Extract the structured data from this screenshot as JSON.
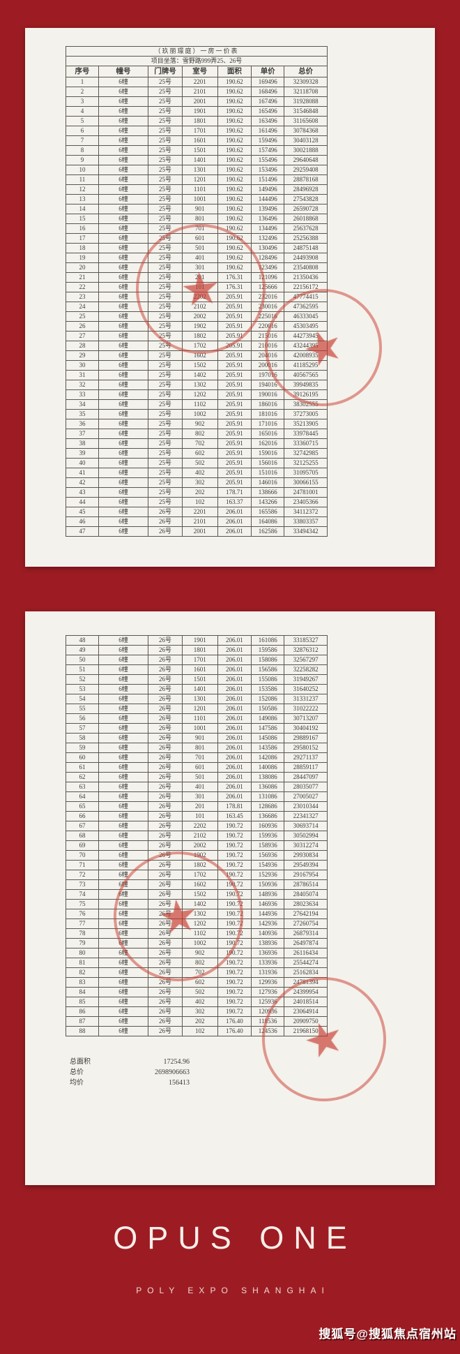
{
  "document": {
    "title": "（玖丽璟庭）一房一价表",
    "location_label": "项目坐落：",
    "location_value": "雪野路999弄25、26号",
    "headers": [
      "序号",
      "幢号",
      "门牌号",
      "室号",
      "面积",
      "单价",
      "总价"
    ],
    "page1_rows": [
      [
        "1",
        "6幢",
        "25号",
        "2201",
        "190.62",
        "169496",
        "32309328"
      ],
      [
        "2",
        "6幢",
        "25号",
        "2101",
        "190.62",
        "168496",
        "32118708"
      ],
      [
        "3",
        "6幢",
        "25号",
        "2001",
        "190.62",
        "167496",
        "31928088"
      ],
      [
        "4",
        "6幢",
        "25号",
        "1901",
        "190.62",
        "165496",
        "31546848"
      ],
      [
        "5",
        "6幢",
        "25号",
        "1801",
        "190.62",
        "163496",
        "31165608"
      ],
      [
        "6",
        "6幢",
        "25号",
        "1701",
        "190.62",
        "161496",
        "30784368"
      ],
      [
        "7",
        "6幢",
        "25号",
        "1601",
        "190.62",
        "159496",
        "30403128"
      ],
      [
        "8",
        "6幢",
        "25号",
        "1501",
        "190.62",
        "157496",
        "30021888"
      ],
      [
        "9",
        "6幢",
        "25号",
        "1401",
        "190.62",
        "155496",
        "29640648"
      ],
      [
        "10",
        "6幢",
        "25号",
        "1301",
        "190.62",
        "153496",
        "29259408"
      ],
      [
        "11",
        "6幢",
        "25号",
        "1201",
        "190.62",
        "151496",
        "28878168"
      ],
      [
        "12",
        "6幢",
        "25号",
        "1101",
        "190.62",
        "149496",
        "28496928"
      ],
      [
        "13",
        "6幢",
        "25号",
        "1001",
        "190.62",
        "144496",
        "27543828"
      ],
      [
        "14",
        "6幢",
        "25号",
        "901",
        "190.62",
        "139496",
        "26590728"
      ],
      [
        "15",
        "6幢",
        "25号",
        "801",
        "190.62",
        "136496",
        "26018868"
      ],
      [
        "16",
        "6幢",
        "25号",
        "701",
        "190.62",
        "134496",
        "25637628"
      ],
      [
        "17",
        "6幢",
        "25号",
        "601",
        "190.62",
        "132496",
        "25256388"
      ],
      [
        "18",
        "6幢",
        "25号",
        "501",
        "190.62",
        "130496",
        "24875148"
      ],
      [
        "19",
        "6幢",
        "25号",
        "401",
        "190.62",
        "128496",
        "24493908"
      ],
      [
        "20",
        "6幢",
        "25号",
        "301",
        "190.62",
        "123496",
        "23540808"
      ],
      [
        "21",
        "6幢",
        "25号",
        "201",
        "176.31",
        "121096",
        "21350436"
      ],
      [
        "22",
        "6幢",
        "25号",
        "101",
        "176.31",
        "125666",
        "22156172"
      ],
      [
        "23",
        "6幢",
        "25号",
        "2202",
        "205.91",
        "232016",
        "47774415"
      ],
      [
        "24",
        "6幢",
        "25号",
        "2102",
        "205.91",
        "230016",
        "47362595"
      ],
      [
        "25",
        "6幢",
        "25号",
        "2002",
        "205.91",
        "225016",
        "46333045"
      ],
      [
        "26",
        "6幢",
        "25号",
        "1902",
        "205.91",
        "220016",
        "45303495"
      ],
      [
        "27",
        "6幢",
        "25号",
        "1802",
        "205.91",
        "215016",
        "44273945"
      ],
      [
        "28",
        "6幢",
        "25号",
        "1702",
        "205.91",
        "210016",
        "43244395"
      ],
      [
        "29",
        "6幢",
        "25号",
        "1602",
        "205.91",
        "204016",
        "42008935"
      ],
      [
        "30",
        "6幢",
        "25号",
        "1502",
        "205.91",
        "200016",
        "41185295"
      ],
      [
        "31",
        "6幢",
        "25号",
        "1402",
        "205.91",
        "197016",
        "40567565"
      ],
      [
        "32",
        "6幢",
        "25号",
        "1302",
        "205.91",
        "194016",
        "39949835"
      ],
      [
        "33",
        "6幢",
        "25号",
        "1202",
        "205.91",
        "190016",
        "39126195"
      ],
      [
        "34",
        "6幢",
        "25号",
        "1102",
        "205.91",
        "186016",
        "38302555"
      ],
      [
        "35",
        "6幢",
        "25号",
        "1002",
        "205.91",
        "181016",
        "37273005"
      ],
      [
        "36",
        "6幢",
        "25号",
        "902",
        "205.91",
        "171016",
        "35213905"
      ],
      [
        "37",
        "6幢",
        "25号",
        "802",
        "205.91",
        "165016",
        "33978445"
      ],
      [
        "38",
        "6幢",
        "25号",
        "702",
        "205.91",
        "162016",
        "33360715"
      ],
      [
        "39",
        "6幢",
        "25号",
        "602",
        "205.91",
        "159016",
        "32742985"
      ],
      [
        "40",
        "6幢",
        "25号",
        "502",
        "205.91",
        "156016",
        "32125255"
      ],
      [
        "41",
        "6幢",
        "25号",
        "402",
        "205.91",
        "151016",
        "31095705"
      ],
      [
        "42",
        "6幢",
        "25号",
        "302",
        "205.91",
        "146016",
        "30066155"
      ],
      [
        "43",
        "6幢",
        "25号",
        "202",
        "178.71",
        "138666",
        "24781001"
      ],
      [
        "44",
        "6幢",
        "25号",
        "102",
        "163.37",
        "143266",
        "23405366"
      ],
      [
        "45",
        "6幢",
        "26号",
        "2201",
        "206.01",
        "165586",
        "34112372"
      ],
      [
        "46",
        "6幢",
        "26号",
        "2101",
        "206.01",
        "164086",
        "33803357"
      ],
      [
        "47",
        "6幢",
        "26号",
        "2001",
        "206.01",
        "162586",
        "33494342"
      ]
    ],
    "page2_rows": [
      [
        "48",
        "6幢",
        "26号",
        "1901",
        "206.01",
        "161086",
        "33185327"
      ],
      [
        "49",
        "6幢",
        "26号",
        "1801",
        "206.01",
        "159586",
        "32876312"
      ],
      [
        "50",
        "6幢",
        "26号",
        "1701",
        "206.01",
        "158086",
        "32567297"
      ],
      [
        "51",
        "6幢",
        "26号",
        "1601",
        "206.01",
        "156586",
        "32258282"
      ],
      [
        "52",
        "6幢",
        "26号",
        "1501",
        "206.01",
        "155086",
        "31949267"
      ],
      [
        "53",
        "6幢",
        "26号",
        "1401",
        "206.01",
        "153586",
        "31640252"
      ],
      [
        "54",
        "6幢",
        "26号",
        "1301",
        "206.01",
        "152086",
        "31331237"
      ],
      [
        "55",
        "6幢",
        "26号",
        "1201",
        "206.01",
        "150586",
        "31022222"
      ],
      [
        "56",
        "6幢",
        "26号",
        "1101",
        "206.01",
        "149086",
        "30713207"
      ],
      [
        "57",
        "6幢",
        "26号",
        "1001",
        "206.01",
        "147586",
        "30404192"
      ],
      [
        "58",
        "6幢",
        "26号",
        "901",
        "206.01",
        "145086",
        "29889167"
      ],
      [
        "59",
        "6幢",
        "26号",
        "801",
        "206.01",
        "143586",
        "29580152"
      ],
      [
        "60",
        "6幢",
        "26号",
        "701",
        "206.01",
        "142086",
        "29271137"
      ],
      [
        "61",
        "6幢",
        "26号",
        "601",
        "206.01",
        "140086",
        "28859117"
      ],
      [
        "62",
        "6幢",
        "26号",
        "501",
        "206.01",
        "138086",
        "28447097"
      ],
      [
        "63",
        "6幢",
        "26号",
        "401",
        "206.01",
        "136086",
        "28035077"
      ],
      [
        "64",
        "6幢",
        "26号",
        "301",
        "206.01",
        "131086",
        "27005027"
      ],
      [
        "65",
        "6幢",
        "26号",
        "201",
        "178.81",
        "128686",
        "23010344"
      ],
      [
        "66",
        "6幢",
        "26号",
        "101",
        "163.45",
        "136686",
        "22341327"
      ],
      [
        "67",
        "6幢",
        "26号",
        "2202",
        "190.72",
        "160936",
        "30693714"
      ],
      [
        "68",
        "6幢",
        "26号",
        "2102",
        "190.72",
        "159936",
        "30502994"
      ],
      [
        "69",
        "6幢",
        "26号",
        "2002",
        "190.72",
        "158936",
        "30312274"
      ],
      [
        "70",
        "6幢",
        "26号",
        "1902",
        "190.72",
        "156936",
        "29930834"
      ],
      [
        "71",
        "6幢",
        "26号",
        "1802",
        "190.72",
        "154936",
        "29549394"
      ],
      [
        "72",
        "6幢",
        "26号",
        "1702",
        "190.72",
        "152936",
        "29167954"
      ],
      [
        "73",
        "6幢",
        "26号",
        "1602",
        "190.72",
        "150936",
        "28786514"
      ],
      [
        "74",
        "6幢",
        "26号",
        "1502",
        "190.72",
        "148936",
        "28405074"
      ],
      [
        "75",
        "6幢",
        "26号",
        "1402",
        "190.72",
        "146936",
        "28023634"
      ],
      [
        "76",
        "6幢",
        "26号",
        "1302",
        "190.72",
        "144936",
        "27642194"
      ],
      [
        "77",
        "6幢",
        "26号",
        "1202",
        "190.72",
        "142936",
        "27260754"
      ],
      [
        "78",
        "6幢",
        "26号",
        "1102",
        "190.72",
        "140936",
        "26879314"
      ],
      [
        "79",
        "6幢",
        "26号",
        "1002",
        "190.72",
        "138936",
        "26497874"
      ],
      [
        "80",
        "6幢",
        "26号",
        "902",
        "190.72",
        "136936",
        "26116434"
      ],
      [
        "81",
        "6幢",
        "26号",
        "802",
        "190.72",
        "133936",
        "25544274"
      ],
      [
        "82",
        "6幢",
        "26号",
        "702",
        "190.72",
        "131936",
        "25162834"
      ],
      [
        "83",
        "6幢",
        "26号",
        "602",
        "190.72",
        "129936",
        "24781394"
      ],
      [
        "84",
        "6幢",
        "26号",
        "502",
        "190.72",
        "127936",
        "24399954"
      ],
      [
        "85",
        "6幢",
        "26号",
        "402",
        "190.72",
        "125936",
        "24018514"
      ],
      [
        "86",
        "6幢",
        "26号",
        "302",
        "190.72",
        "120936",
        "23064914"
      ],
      [
        "87",
        "6幢",
        "26号",
        "202",
        "176.40",
        "118536",
        "20909750"
      ],
      [
        "88",
        "6幢",
        "26号",
        "102",
        "176.40",
        "124536",
        "21968150"
      ]
    ],
    "summary": {
      "area_label": "总面积",
      "area_value": "17254.96",
      "total_label": "总价",
      "total_value": "2698906663",
      "avg_label": "均价",
      "avg_value": "156413"
    },
    "seal_icon": "★"
  },
  "footer": {
    "brand": "OPUS ONE",
    "subtitle": "POLY EXPO SHANGHAI"
  },
  "watermark": "搜狐号@搜狐焦点宿州站",
  "colors": {
    "background": "#9d1c23",
    "paper": "#f4f2ec",
    "seal": "#c7392e"
  }
}
